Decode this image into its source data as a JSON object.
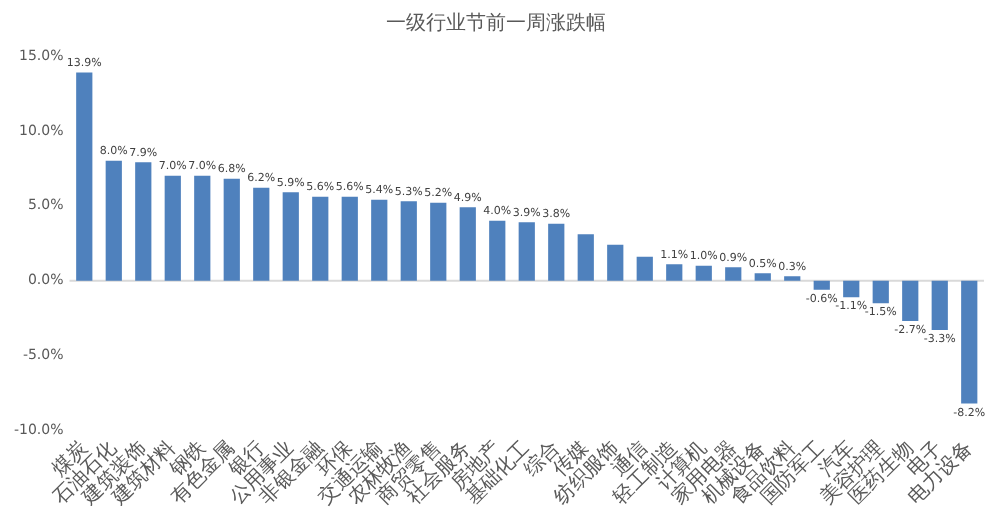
{
  "chart_data": {
    "type": "bar",
    "title": "一级行业节前一周涨跌幅",
    "categories": [
      "煤炭",
      "石油石化",
      "建筑装饰",
      "建筑材料",
      "钢铁",
      "有色金属",
      "银行",
      "公用事业",
      "非银金融",
      "环保",
      "交通运输",
      "农林牧渔",
      "商贸零售",
      "社会服务",
      "房地产",
      "基础化工",
      "综合",
      "传媒",
      "纺织服饰",
      "通信",
      "轻工制造",
      "计算机",
      "家用电器",
      "机械设备",
      "食品饮料",
      "国防军工",
      "汽车",
      "美容护理",
      "医药生物",
      "电子",
      "电力设备"
    ],
    "values": [
      13.9,
      8.0,
      7.9,
      7.0,
      7.0,
      6.8,
      6.2,
      5.9,
      5.6,
      5.6,
      5.4,
      5.3,
      5.2,
      4.9,
      4.0,
      3.9,
      3.8,
      3.1,
      2.4,
      1.6,
      1.1,
      1.0,
      0.9,
      0.5,
      0.3,
      -0.6,
      -1.1,
      -1.5,
      -2.7,
      -3.3,
      -8.2
    ],
    "value_labels": [
      "13.9%",
      "8.0%",
      "7.9%",
      "7.0%",
      "7.0%",
      "6.8%",
      "6.2%",
      "5.9%",
      "5.6%",
      "5.6%",
      "5.4%",
      "5.3%",
      "5.2%",
      "4.9%",
      "4.0%",
      "3.9%",
      "3.8%",
      null,
      null,
      null,
      "1.1%",
      "1.0%",
      "0.9%",
      "0.5%",
      "0.3%",
      "-0.6%",
      "-1.1%",
      "-1.5%",
      "-2.7%",
      "-3.3%",
      "-8.2%"
    ],
    "color": "#4f81bd",
    "ylim": [
      -10,
      15
    ],
    "yticks": [
      {
        "value": -10,
        "label": "-10.0%"
      },
      {
        "value": -5,
        "label": "-5.0%"
      },
      {
        "value": 0,
        "label": "0.0%"
      },
      {
        "value": 5,
        "label": "5.0%"
      },
      {
        "value": 10,
        "label": "10.0%"
      },
      {
        "value": 15,
        "label": "15.0%"
      }
    ],
    "ref_lines": [
      {
        "axis": "y",
        "value": 0,
        "color": "#d9d9d9"
      }
    ],
    "grid": false,
    "legend": false
  }
}
